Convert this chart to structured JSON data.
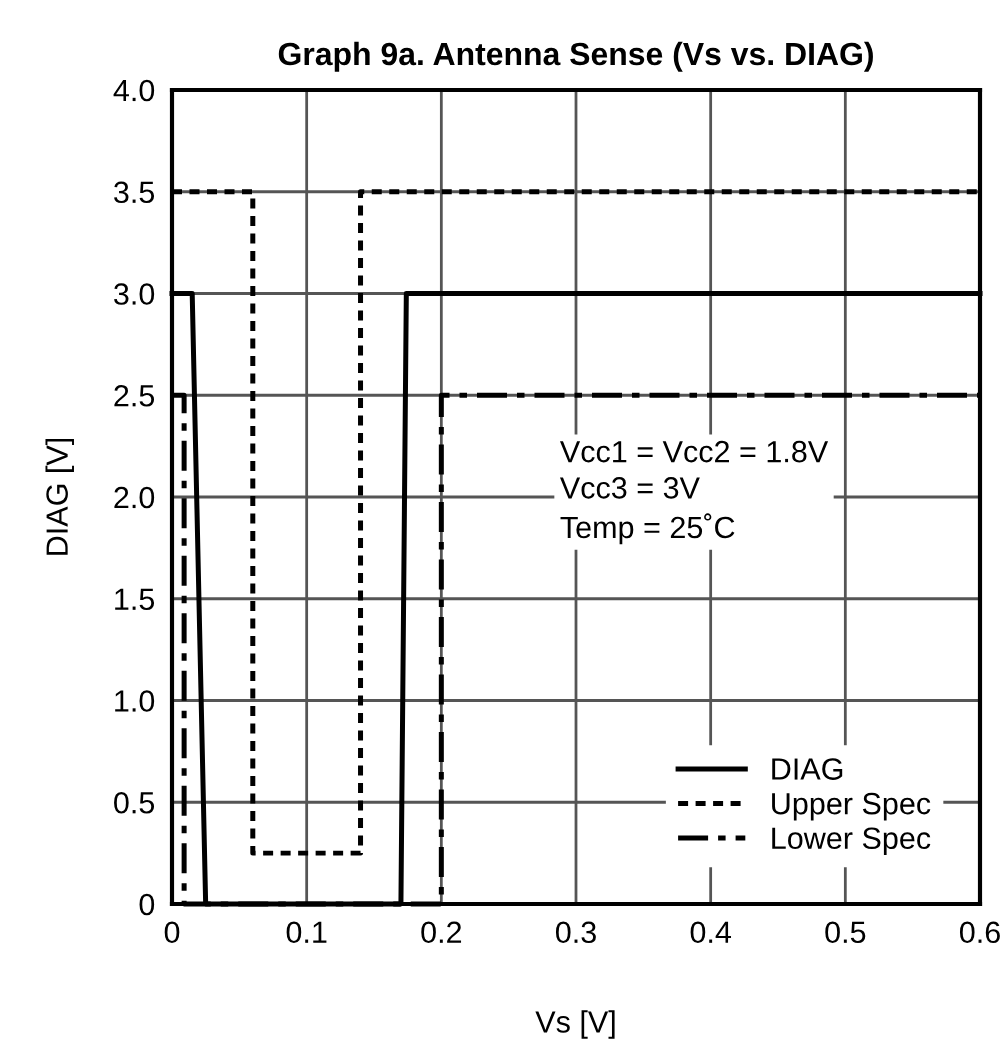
{
  "chart_data": {
    "type": "line",
    "title": "Graph 9a. Antenna Sense (Vs vs. DIAG)",
    "xlabel": "Vs [V]",
    "ylabel": "DIAG [V]",
    "series": [
      {
        "name": "DIAG",
        "color": "#000000",
        "line_style": "solid",
        "x": [
          0,
          0.015,
          0.025,
          0.17,
          0.174,
          0.6
        ],
        "values": [
          3.0,
          3.0,
          0,
          0,
          3.0,
          3.0
        ]
      },
      {
        "name": "Upper Spec",
        "color": "#000000",
        "line_style": "dotted",
        "x": [
          0,
          0.06,
          0.06,
          0.14,
          0.14,
          0.6
        ],
        "values": [
          3.5,
          3.5,
          0.25,
          0.25,
          3.5,
          3.5
        ]
      },
      {
        "name": "Lower Spec",
        "color": "#000000",
        "line_style": "dashdot",
        "x": [
          0,
          0.009,
          0.009,
          0.2,
          0.2,
          0.6
        ],
        "values": [
          2.5,
          2.5,
          0,
          0,
          2.5,
          2.5
        ]
      }
    ],
    "xlim": [
      0,
      0.6
    ],
    "ylim": [
      0,
      4.0
    ],
    "xticks": [
      0,
      0.1,
      0.2,
      0.3,
      0.4,
      0.5,
      0.6
    ],
    "yticks": [
      0,
      0.5,
      {
        "value": 1.0,
        "label": "1.0"
      },
      1.5,
      {
        "value": 2.0,
        "label": "2.0"
      },
      2.5,
      {
        "value": 3.0,
        "label": "3.0"
      },
      3.5,
      {
        "value": 4.0,
        "label": "4.0"
      }
    ],
    "grid": true,
    "legend": "bottom right",
    "annotations": [
      "Vcc1 = Vcc2 = 1.8V\nVcc3 = 3V\nTemp = 25˚C"
    ]
  }
}
